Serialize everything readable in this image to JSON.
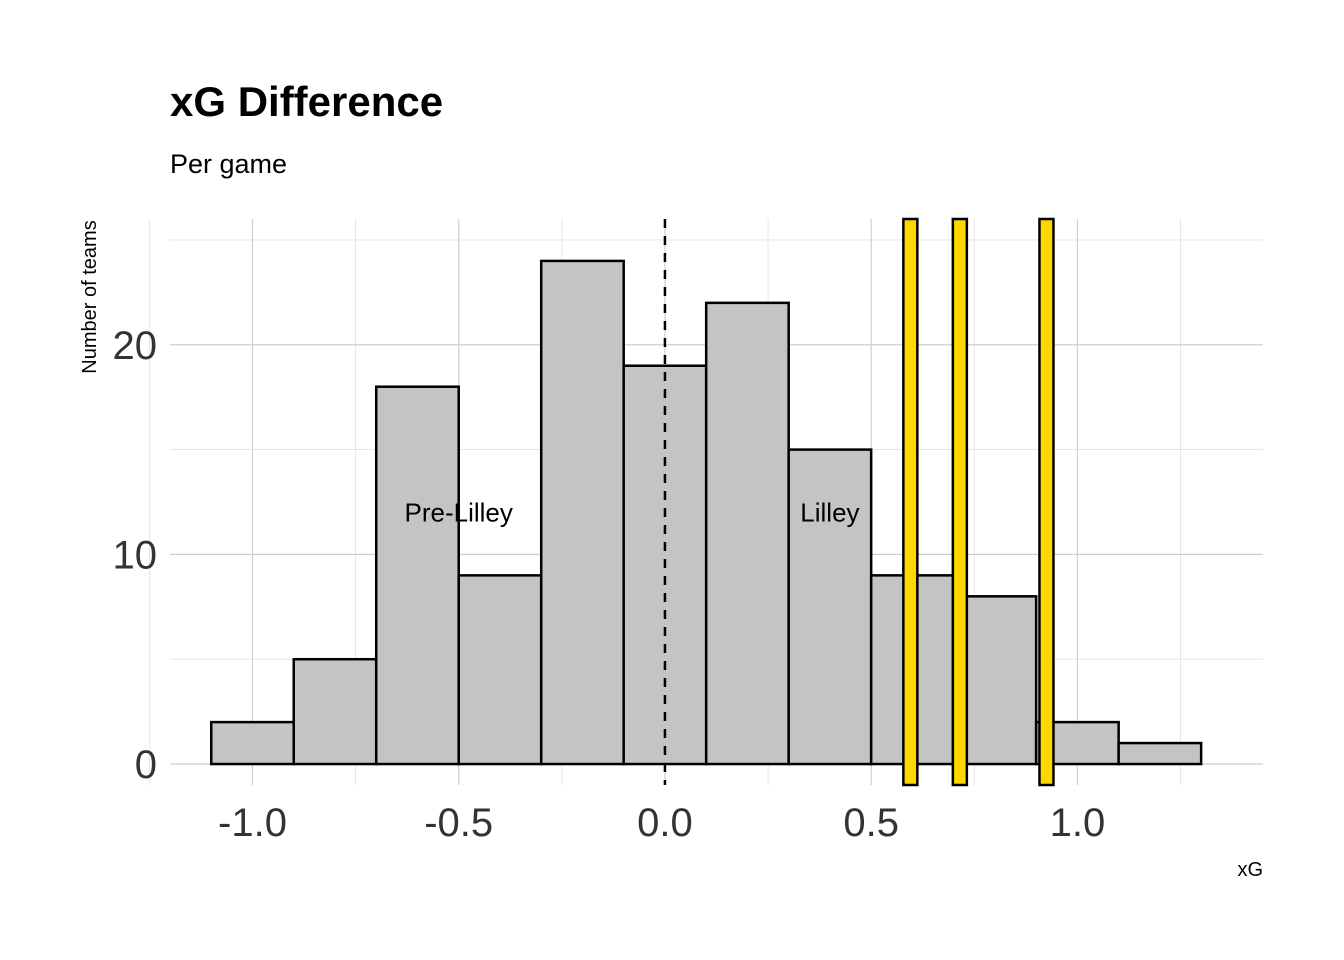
{
  "chart_data": {
    "type": "bar",
    "title": "xG Difference",
    "subtitle": "Per game",
    "xlabel": "xG",
    "ylabel": "Number of teams",
    "xlim": [
      -1.2,
      1.45
    ],
    "ylim": [
      -1,
      26
    ],
    "x_ticks": [
      -1.0,
      -0.5,
      0.0,
      0.5,
      1.0
    ],
    "x_tick_labels": [
      "-1.0",
      "-0.5",
      "0.0",
      "0.5",
      "1.0"
    ],
    "y_ticks": [
      0,
      10,
      20
    ],
    "y_tick_labels": [
      "0",
      "10",
      "20"
    ],
    "grid": true,
    "bar_color": "#c4c4c4",
    "bar_outline": "#000000",
    "bins": [
      {
        "x0": -1.1,
        "x1": -0.9,
        "count": 2
      },
      {
        "x0": -0.9,
        "x1": -0.7,
        "count": 5
      },
      {
        "x0": -0.7,
        "x1": -0.5,
        "count": 18
      },
      {
        "x0": -0.5,
        "x1": -0.3,
        "count": 9
      },
      {
        "x0": -0.3,
        "x1": -0.1,
        "count": 24
      },
      {
        "x0": -0.1,
        "x1": 0.1,
        "count": 19
      },
      {
        "x0": 0.1,
        "x1": 0.3,
        "count": 22
      },
      {
        "x0": 0.3,
        "x1": 0.5,
        "count": 15
      },
      {
        "x0": 0.5,
        "x1": 0.7,
        "count": 9
      },
      {
        "x0": 0.7,
        "x1": 0.9,
        "count": 8
      },
      {
        "x0": 0.9,
        "x1": 1.1,
        "count": 2
      },
      {
        "x0": 1.1,
        "x1": 1.3,
        "count": 1
      }
    ],
    "reference_line": {
      "x": 0.0,
      "style": "dashed",
      "color": "#000000"
    },
    "highlight_lines": {
      "color": "#ffd700",
      "outline": "#000000",
      "x": [
        0.595,
        0.715,
        0.925
      ]
    },
    "annotations": [
      {
        "text": "Pre-Lilley",
        "x": -0.5,
        "y": 12
      },
      {
        "text": "Lilley",
        "x": 0.4,
        "y": 12
      }
    ]
  }
}
